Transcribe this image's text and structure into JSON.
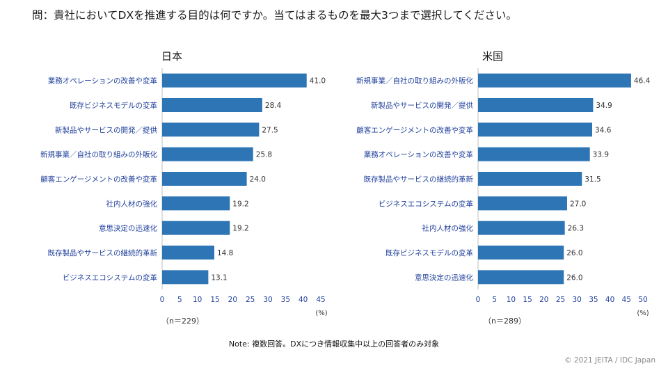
{
  "question": "問：貴社においてDXを推進する目的は何ですか。当てはまるものを最大3つまで選択してください。",
  "note": "Note: 複数回答。DXにつき情報収集中以上の回答者のみ対象",
  "copyright": "© 2021 JEITA / IDC Japan",
  "colors": {
    "bar": "#2e75b6",
    "category_text": "#1f3f9c",
    "axis": "#bfbfbf"
  },
  "chart_data": [
    {
      "type": "bar",
      "orientation": "horizontal",
      "title": "日本",
      "sample_size": "（n＝229）",
      "unit": "(%)",
      "xlim": [
        0,
        45
      ],
      "ticks": [
        0,
        5,
        10,
        15,
        20,
        25,
        30,
        35,
        40,
        45
      ],
      "categories": [
        "業務オペレーションの改善や変革",
        "既存ビジネスモデルの変革",
        "新製品やサービスの開発／提供",
        "新規事業／自社の取り組みの外販化",
        "顧客エンゲージメントの改善や変革",
        "社内人材の強化",
        "意思決定の迅速化",
        "既存製品やサービスの継続的革新",
        "ビジネスエコシステムの変革"
      ],
      "values": [
        41.0,
        28.4,
        27.5,
        25.8,
        24.0,
        19.2,
        19.2,
        14.8,
        13.1
      ]
    },
    {
      "type": "bar",
      "orientation": "horizontal",
      "title": "米国",
      "sample_size": "（n＝289）",
      "unit": "(%)",
      "xlim": [
        0,
        50
      ],
      "ticks": [
        0,
        5,
        10,
        15,
        20,
        25,
        30,
        35,
        40,
        45,
        50
      ],
      "categories": [
        "新規事業／自社の取り組みの外販化",
        "新製品やサービスの開発／提供",
        "顧客エンゲージメントの改善や変革",
        "業務オペレーションの改善や変革",
        "既存製品やサービスの継続的革新",
        "ビジネスエコシステムの変革",
        "社内人材の強化",
        "既存ビジネスモデルの変革",
        "意思決定の迅速化"
      ],
      "values": [
        46.4,
        34.9,
        34.6,
        33.9,
        31.5,
        27.0,
        26.3,
        26.0,
        26.0
      ]
    }
  ]
}
